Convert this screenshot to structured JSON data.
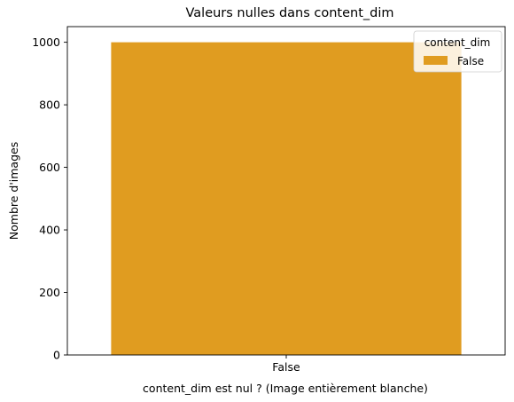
{
  "chart_data": {
    "type": "bar",
    "title": "Valeurs nulles dans content_dim",
    "xlabel": "content_dim est nul ? (Image entièrement blanche)",
    "ylabel": "Nombre d'images",
    "categories": [
      "False"
    ],
    "series": [
      {
        "name": "False",
        "values": [
          1000
        ],
        "color": "#E09C20"
      }
    ],
    "ylim": [
      0,
      1050
    ],
    "yticks": [
      0,
      200,
      400,
      600,
      800,
      1000
    ],
    "grid": false,
    "legend": {
      "title": "content_dim",
      "placement": "top-right",
      "entries": [
        "False"
      ]
    }
  }
}
